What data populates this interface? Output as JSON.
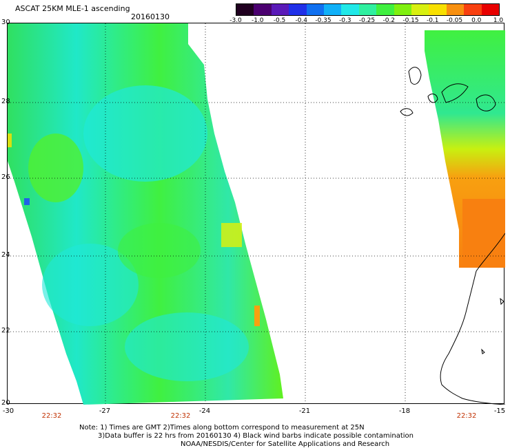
{
  "header": {
    "title": "ASCAT 25KM MLE-1 ascending",
    "date": "20160130"
  },
  "colorbar": {
    "labels": [
      "-3.0",
      "-1.0",
      "-0.5",
      "-0.4",
      "-0.35",
      "-0.3",
      "-0.25",
      "-0.2",
      "-0.15",
      "-0.1",
      "-0.05",
      "0.0",
      "1.0"
    ],
    "colors": [
      "#200020",
      "#4b0070",
      "#5a1ab8",
      "#2030e8",
      "#1070f0",
      "#10b0f8",
      "#20e8e8",
      "#30f0a0",
      "#40f040",
      "#80f010",
      "#d8f010",
      "#f8e000",
      "#f89010",
      "#f84010",
      "#e80000"
    ]
  },
  "axes": {
    "lat_labels": [
      "30",
      "28",
      "26",
      "24",
      "22",
      "20"
    ],
    "lon_labels": [
      "-30",
      "-27",
      "-24",
      "-21",
      "-18",
      "-15"
    ],
    "times": [
      "22:32",
      "22:32",
      "22:32"
    ]
  },
  "notes": [
    "Note: 1) Times are GMT 2)Times along bottom correspond to measurement at 25N",
    "3)Data buffer is 22 hrs from 20160130 4) Black wind barbs indicate possible contamination",
    "NOAA/NESDIS/Center for Satellite Applications and Research"
  ]
}
